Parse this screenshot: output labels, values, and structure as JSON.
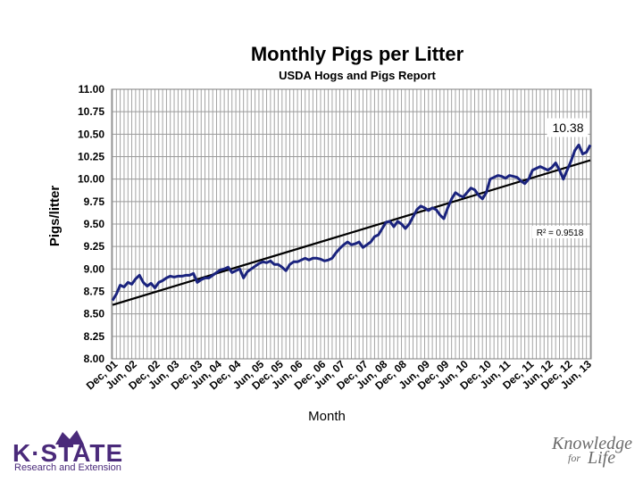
{
  "chart_data": {
    "type": "line",
    "title": "Monthly Pigs per Litter",
    "subtitle": "USDA Hogs and Pigs Report",
    "xlabel": "Month",
    "ylabel": "Pigs/litter",
    "ylim": [
      8.0,
      11.0
    ],
    "yticks": [
      "11.00",
      "10.75",
      "10.50",
      "10.25",
      "10.00",
      "9.75",
      "9.50",
      "9.25",
      "9.00",
      "8.75",
      "8.50",
      "8.25",
      "8.00"
    ],
    "x_tick_labels": [
      "Dec, 01",
      "Jun, 02",
      "Dec, 02",
      "Jun, 03",
      "Dec, 03",
      "Jun, 04",
      "Dec, 04",
      "Jun, 05",
      "Dec, 05",
      "Jun, 06",
      "Dec, 06",
      "Jun, 07",
      "Dec, 07",
      "Jun, 08",
      "Dec, 08",
      "Jun, 09",
      "Dec, 09",
      "Jun, 10",
      "Dec, 10",
      "Jun, 11",
      "Dec, 11",
      "Jun, 12",
      "Dec, 12",
      "Jun, 13"
    ],
    "grid": true,
    "series": [
      {
        "color": "#1a237e",
        "values": [
          8.65,
          8.72,
          8.82,
          8.8,
          8.85,
          8.83,
          8.89,
          8.93,
          8.85,
          8.81,
          8.84,
          8.79,
          8.85,
          8.87,
          8.9,
          8.92,
          8.91,
          8.92,
          8.92,
          8.93,
          8.93,
          8.95,
          8.85,
          8.88,
          8.9,
          8.9,
          8.93,
          8.96,
          8.99,
          9.0,
          9.02,
          8.96,
          8.98,
          9.0,
          8.9,
          8.97,
          9.0,
          9.03,
          9.06,
          9.08,
          9.07,
          9.09,
          9.05,
          9.05,
          9.02,
          8.98,
          9.05,
          9.08,
          9.08,
          9.1,
          9.12,
          9.1,
          9.12,
          9.12,
          9.11,
          9.09,
          9.1,
          9.12,
          9.18,
          9.23,
          9.27,
          9.3,
          9.27,
          9.28,
          9.3,
          9.24,
          9.27,
          9.3,
          9.36,
          9.38,
          9.45,
          9.52,
          9.53,
          9.47,
          9.53,
          9.5,
          9.45,
          9.5,
          9.58,
          9.66,
          9.7,
          9.68,
          9.65,
          9.68,
          9.66,
          9.6,
          9.56,
          9.68,
          9.78,
          9.85,
          9.82,
          9.8,
          9.85,
          9.9,
          9.88,
          9.82,
          9.78,
          9.85,
          10.0,
          10.02,
          10.04,
          10.03,
          10.01,
          10.04,
          10.03,
          10.02,
          9.98,
          9.95,
          10.0,
          10.1,
          10.12,
          10.14,
          10.12,
          10.1,
          10.13,
          10.18,
          10.1,
          10.0,
          10.1,
          10.2,
          10.32,
          10.38,
          10.28,
          10.3,
          10.38
        ]
      },
      {
        "name": "trend",
        "color": "#000000",
        "values": [
          8.6,
          10.21
        ]
      }
    ],
    "annotations": {
      "last_value": "10.38",
      "r_squared": "R² = 0.9518"
    }
  },
  "branding": {
    "logo_text": "K·STATE",
    "logo_subtext": "Research and Extension",
    "tagline_line1": "Knowledge",
    "tagline_for": "for",
    "tagline_line2": "Life"
  }
}
